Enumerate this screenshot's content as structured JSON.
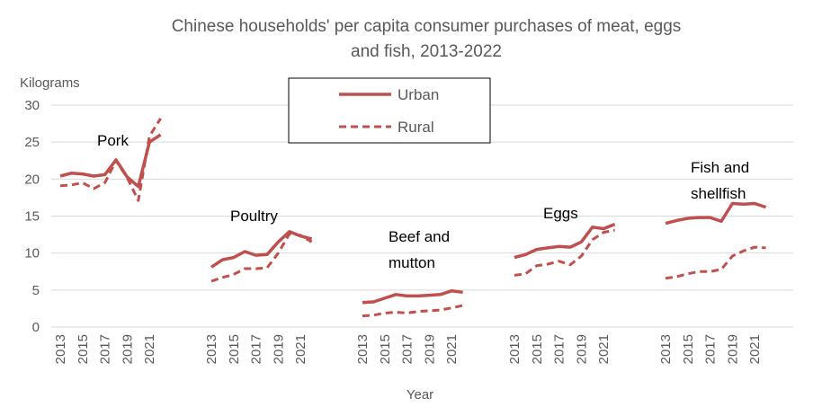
{
  "chart_data": {
    "type": "line",
    "title_line1": "Chinese households' per capita consumer purchases of meat, eggs",
    "title_line2": "and fish, 2013-2022",
    "ylabel": "Kilograms",
    "xlabel": "Year",
    "ylim": [
      0,
      30
    ],
    "yticks": [
      "0",
      "5",
      "10",
      "15",
      "20",
      "25",
      "30"
    ],
    "grid": true,
    "legend_position": "top-center",
    "colors": {
      "urban": "#c0504d",
      "rural": "#c0504d",
      "grid": "#d9d9d9",
      "text": "#595959"
    },
    "series_names": {
      "urban": "Urban",
      "rural": "Rural"
    },
    "years": [
      2013,
      2014,
      2015,
      2016,
      2017,
      2018,
      2019,
      2020,
      2021,
      2022
    ],
    "tick_labels": [
      "2013",
      "2015",
      "2017",
      "2019",
      "2021"
    ],
    "groups": [
      {
        "annotation": [
          "Pork"
        ],
        "urban": [
          20.4,
          20.8,
          20.7,
          20.4,
          20.6,
          22.6,
          20.3,
          19.0,
          25.0,
          26.0
        ],
        "rural": [
          19.1,
          19.2,
          19.5,
          18.7,
          19.5,
          22.5,
          20.2,
          17.1,
          25.8,
          28.2
        ]
      },
      {
        "annotation": [
          "Poultry"
        ],
        "urban": [
          8.1,
          9.1,
          9.4,
          10.2,
          9.7,
          9.8,
          11.5,
          12.9,
          12.3,
          11.9
        ],
        "rural": [
          6.2,
          6.7,
          7.1,
          7.9,
          7.9,
          8.0,
          10.0,
          12.6,
          12.4,
          11.5
        ]
      },
      {
        "annotation": [
          "Beef and",
          "mutton"
        ],
        "urban": [
          3.3,
          3.4,
          3.9,
          4.4,
          4.2,
          4.2,
          4.3,
          4.4,
          4.9,
          4.7
        ],
        "rural": [
          1.5,
          1.6,
          1.9,
          2.0,
          1.9,
          2.1,
          2.2,
          2.3,
          2.6,
          2.9
        ]
      },
      {
        "annotation": [
          "Eggs"
        ],
        "urban": [
          9.4,
          9.8,
          10.5,
          10.7,
          10.9,
          10.8,
          11.5,
          13.5,
          13.3,
          13.9
        ],
        "rural": [
          7.0,
          7.2,
          8.3,
          8.5,
          8.9,
          8.4,
          9.6,
          11.8,
          12.8,
          13.1
        ]
      },
      {
        "annotation": [
          "Fish and",
          "shellfish"
        ],
        "urban": [
          14.0,
          14.4,
          14.7,
          14.8,
          14.8,
          14.3,
          16.7,
          16.6,
          16.7,
          16.2
        ],
        "rural": [
          6.6,
          6.8,
          7.2,
          7.5,
          7.5,
          7.8,
          9.6,
          10.3,
          10.8,
          10.7
        ]
      }
    ]
  }
}
